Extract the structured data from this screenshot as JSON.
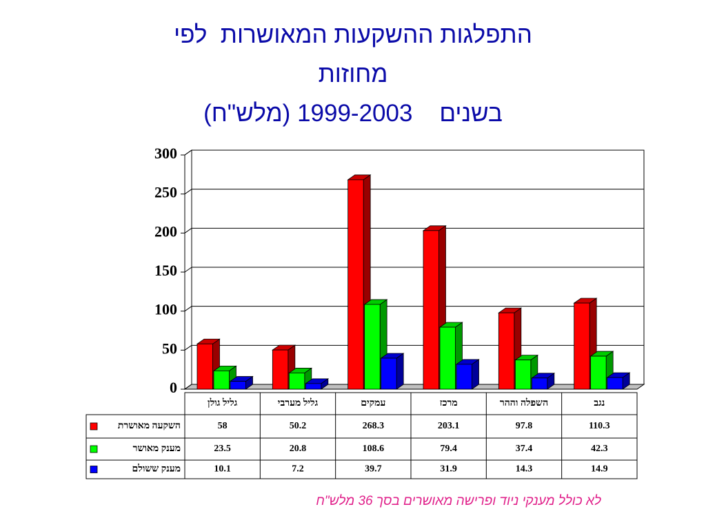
{
  "chart_data": {
    "type": "bar",
    "title": [
      "התפלגות ההשקעות המאושרות  לפי",
      "מחוזות",
      "בשנים    1999-2003 (מלש\"ח)"
    ],
    "note": "לא כולל מענקי ניוד ופרישה מאושרים בסך 36 מלש\"ח",
    "categories": [
      "גליל גולן",
      "גליל מערבי",
      "עמקים",
      "מרכז",
      "השפלה וההר",
      "נגב"
    ],
    "series": [
      {
        "name": "השקעה מאושרת",
        "color": "#ff0000",
        "values": [
          58,
          50.2,
          268.3,
          203.1,
          97.8,
          110.3
        ]
      },
      {
        "name": "מענק מאושר",
        "color": "#00ff00",
        "values": [
          23.5,
          20.8,
          108.6,
          79.4,
          37.4,
          42.3
        ]
      },
      {
        "name": "מענק ששולם",
        "color": "#0000ff",
        "values": [
          10.1,
          7.2,
          39.7,
          31.9,
          14.3,
          14.9
        ]
      }
    ],
    "ylim": [
      0,
      300
    ],
    "yticks": [
      0,
      50,
      100,
      150,
      200,
      250,
      300
    ],
    "grid": true
  }
}
